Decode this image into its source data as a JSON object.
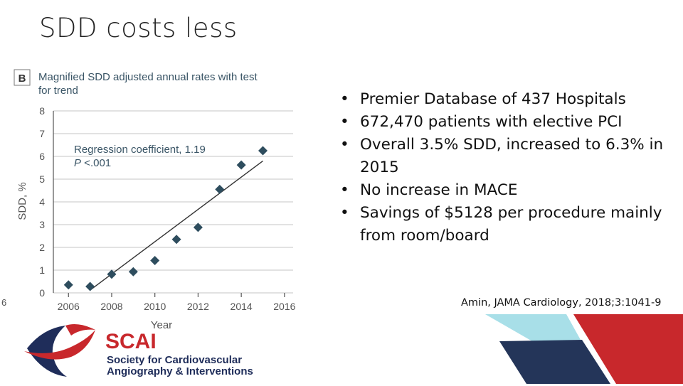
{
  "slide": {
    "title": "SDD costs less",
    "slide_number": "6",
    "bullets": [
      "Premier Database of 437 Hospitals",
      "672,470 patients with elective PCI",
      "Overall 3.5% SDD, increased to 6.3% in 2015",
      "No increase in MACE",
      "Savings of $5128 per procedure mainly from room/board"
    ],
    "citation": "Amin, JAMA Cardiology, 2018;3:1041-9",
    "logo": {
      "acronym": "SCAI",
      "line1": "Society for Cardiovascular",
      "line2": "Angiography & Interventions",
      "colors": {
        "navy": "#1f2d5a",
        "red": "#c8282c"
      }
    },
    "decoration_colors": {
      "light_blue": "#a8dfe8",
      "navy": "#243559",
      "red": "#c8282c"
    }
  },
  "chart_data": {
    "type": "scatter",
    "panel_label": "B",
    "title_line1": "Magnified SDD adjusted annual rates with test",
    "title_line2": "for trend",
    "xlabel": "Year",
    "ylabel": "SDD, %",
    "xlim": [
      2005.3,
      2016.4
    ],
    "ylim": [
      0,
      8
    ],
    "xticks": [
      2006,
      2008,
      2010,
      2012,
      2014,
      2016
    ],
    "yticks": [
      0,
      1,
      2,
      3,
      4,
      5,
      6,
      7,
      8
    ],
    "grid": "horizontal",
    "annotation_line1": "Regression coefficient, 1.19",
    "annotation_p": "P",
    "annotation_rest": " <.001",
    "marker_color": "#2e4d5e",
    "points": [
      {
        "x": 2006,
        "y": 0.35
      },
      {
        "x": 2007,
        "y": 0.28
      },
      {
        "x": 2008,
        "y": 0.82
      },
      {
        "x": 2009,
        "y": 0.93
      },
      {
        "x": 2010,
        "y": 1.42
      },
      {
        "x": 2011,
        "y": 2.35
      },
      {
        "x": 2012,
        "y": 2.88
      },
      {
        "x": 2013,
        "y": 4.55
      },
      {
        "x": 2014,
        "y": 5.62
      },
      {
        "x": 2015,
        "y": 6.25
      }
    ],
    "trendline": {
      "x": [
        2007,
        2015
      ],
      "y": [
        0.12,
        5.8
      ]
    }
  }
}
